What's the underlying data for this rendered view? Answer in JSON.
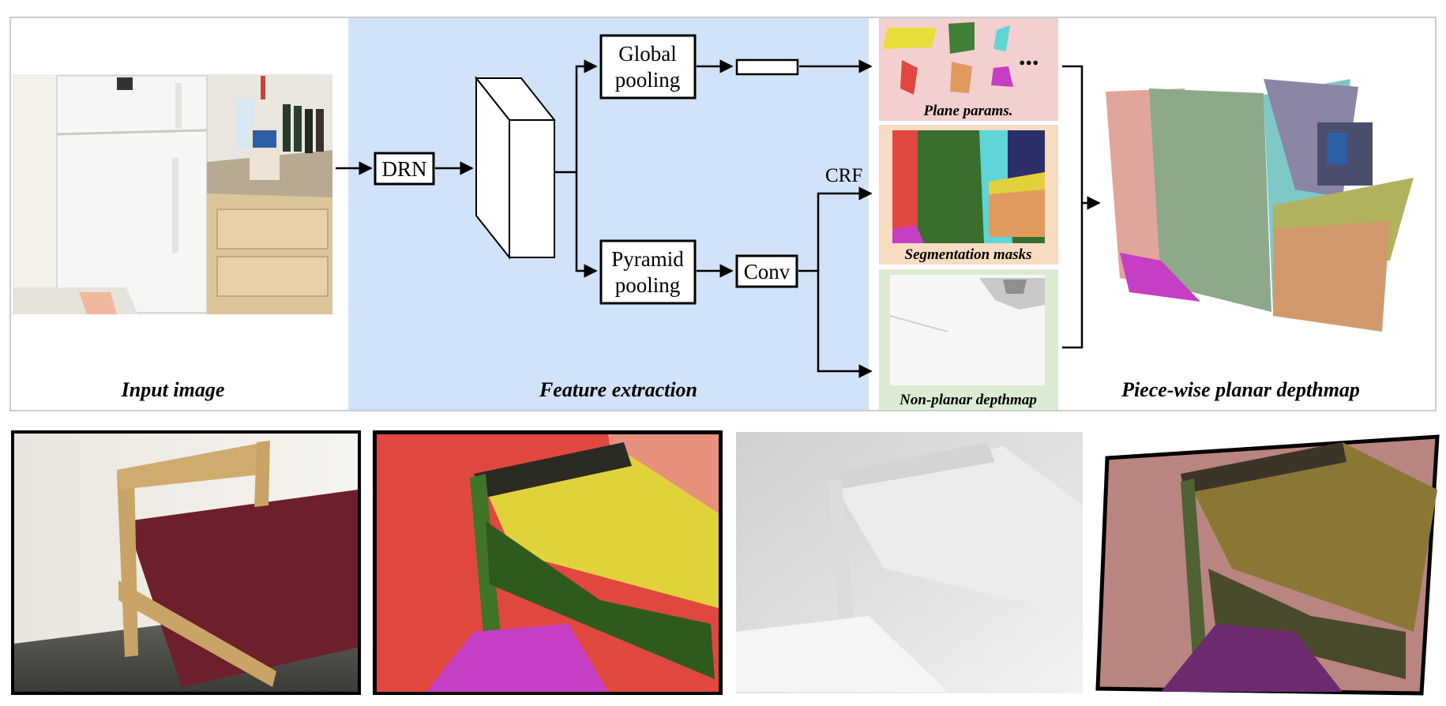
{
  "captions": {
    "input_image": "Input image",
    "feature_extraction": "Feature extraction",
    "piecewise_depthmap": "Piece-wise planar depthmap"
  },
  "blocks": {
    "drn": "DRN",
    "global_pooling_1": "Global",
    "global_pooling_2": "pooling",
    "pyramid_pooling_1": "Pyramid",
    "pyramid_pooling_2": "pooling",
    "conv": "Conv",
    "crf": "CRF",
    "ellipsis": "..."
  },
  "outputs": {
    "plane_params": "Plane params.",
    "segmentation_masks": "Segmentation masks",
    "non_planar_depthmap": "Non-planar depthmap"
  },
  "colors": {
    "feature_bg": "#d2e2f8",
    "plane_params_bg": "#f4cfd0",
    "seg_bg": "#f7dcc2",
    "nonplanar_bg": "#dcebd3",
    "seg_red": "#e0483f",
    "seg_pink": "#e7917c",
    "seg_yellow": "#e1d23c",
    "seg_green": "#3a6e2c",
    "seg_magenta": "#c63ec4",
    "seg_cyan": "#5ed5d6",
    "seg_orange": "#e39a5e"
  },
  "bottom_row": [
    "bed-photo",
    "bed-segmentation",
    "bed-depthmap",
    "bed-planar-reconstruction"
  ]
}
